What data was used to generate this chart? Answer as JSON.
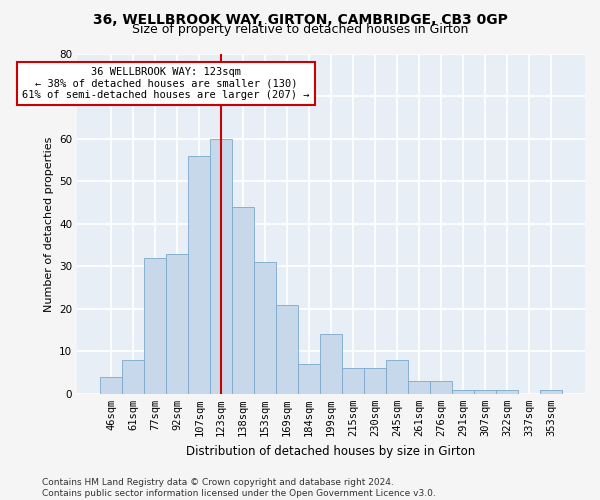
{
  "title": "36, WELLBROOK WAY, GIRTON, CAMBRIDGE, CB3 0GP",
  "subtitle": "Size of property relative to detached houses in Girton",
  "xlabel": "Distribution of detached houses by size in Girton",
  "ylabel": "Number of detached properties",
  "bar_color": "#c8d8eb",
  "bar_edge_color": "#7aa8cc",
  "plot_bg_color": "#e8eef5",
  "fig_bg_color": "#f5f5f5",
  "grid_color": "#ffffff",
  "categories": [
    "46sqm",
    "61sqm",
    "77sqm",
    "92sqm",
    "107sqm",
    "123sqm",
    "138sqm",
    "153sqm",
    "169sqm",
    "184sqm",
    "199sqm",
    "215sqm",
    "230sqm",
    "245sqm",
    "261sqm",
    "276sqm",
    "291sqm",
    "307sqm",
    "322sqm",
    "337sqm",
    "353sqm"
  ],
  "values": [
    4,
    8,
    32,
    33,
    56,
    60,
    44,
    31,
    21,
    7,
    14,
    6,
    6,
    8,
    3,
    3,
    1,
    1,
    1,
    0,
    1
  ],
  "ylim": [
    0,
    80
  ],
  "yticks": [
    0,
    10,
    20,
    30,
    40,
    50,
    60,
    70,
    80
  ],
  "property_line_index": 5,
  "annotation_line1": "36 WELLBROOK WAY: 123sqm",
  "annotation_line2": "← 38% of detached houses are smaller (130)",
  "annotation_line3": "61% of semi-detached houses are larger (207) →",
  "annotation_box_facecolor": "#ffffff",
  "annotation_box_edgecolor": "#cc0000",
  "line_color": "#cc0000",
  "footer_line1": "Contains HM Land Registry data © Crown copyright and database right 2024.",
  "footer_line2": "Contains public sector information licensed under the Open Government Licence v3.0.",
  "title_fontsize": 10,
  "subtitle_fontsize": 9,
  "ylabel_fontsize": 8,
  "xlabel_fontsize": 8.5,
  "tick_fontsize": 7.5,
  "annotation_fontsize": 7.5,
  "footer_fontsize": 6.5
}
